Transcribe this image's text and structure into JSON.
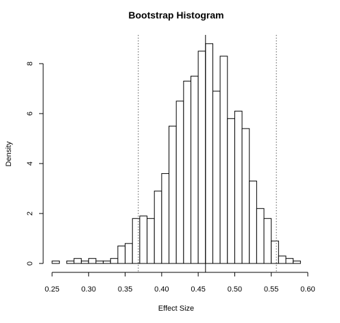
{
  "chart_data": {
    "type": "bar",
    "title": "Bootstrap Histogram",
    "xlabel": "Effect Size",
    "ylabel": "Density",
    "xlim": [
      0.25,
      0.6
    ],
    "ylim": [
      0,
      8
    ],
    "bin_width": 0.01,
    "bins": [
      {
        "x0": 0.25,
        "x1": 0.26,
        "density": 0.1
      },
      {
        "x0": 0.26,
        "x1": 0.27,
        "density": 0.0
      },
      {
        "x0": 0.27,
        "x1": 0.28,
        "density": 0.1
      },
      {
        "x0": 0.28,
        "x1": 0.29,
        "density": 0.2
      },
      {
        "x0": 0.29,
        "x1": 0.3,
        "density": 0.1
      },
      {
        "x0": 0.3,
        "x1": 0.31,
        "density": 0.2
      },
      {
        "x0": 0.31,
        "x1": 0.32,
        "density": 0.1
      },
      {
        "x0": 0.32,
        "x1": 0.33,
        "density": 0.1
      },
      {
        "x0": 0.33,
        "x1": 0.34,
        "density": 0.2
      },
      {
        "x0": 0.34,
        "x1": 0.35,
        "density": 0.7
      },
      {
        "x0": 0.35,
        "x1": 0.36,
        "density": 0.8
      },
      {
        "x0": 0.36,
        "x1": 0.37,
        "density": 1.8
      },
      {
        "x0": 0.37,
        "x1": 0.38,
        "density": 1.9
      },
      {
        "x0": 0.38,
        "x1": 0.39,
        "density": 1.8
      },
      {
        "x0": 0.39,
        "x1": 0.4,
        "density": 2.9
      },
      {
        "x0": 0.4,
        "x1": 0.41,
        "density": 3.6
      },
      {
        "x0": 0.41,
        "x1": 0.42,
        "density": 5.5
      },
      {
        "x0": 0.42,
        "x1": 0.43,
        "density": 6.5
      },
      {
        "x0": 0.43,
        "x1": 0.44,
        "density": 7.3
      },
      {
        "x0": 0.44,
        "x1": 0.45,
        "density": 7.5
      },
      {
        "x0": 0.45,
        "x1": 0.46,
        "density": 8.5
      },
      {
        "x0": 0.46,
        "x1": 0.47,
        "density": 8.8
      },
      {
        "x0": 0.47,
        "x1": 0.48,
        "density": 6.9
      },
      {
        "x0": 0.48,
        "x1": 0.49,
        "density": 8.3
      },
      {
        "x0": 0.49,
        "x1": 0.5,
        "density": 5.8
      },
      {
        "x0": 0.5,
        "x1": 0.51,
        "density": 6.1
      },
      {
        "x0": 0.51,
        "x1": 0.52,
        "density": 5.4
      },
      {
        "x0": 0.52,
        "x1": 0.53,
        "density": 3.3
      },
      {
        "x0": 0.53,
        "x1": 0.54,
        "density": 2.2
      },
      {
        "x0": 0.54,
        "x1": 0.55,
        "density": 1.8
      },
      {
        "x0": 0.55,
        "x1": 0.56,
        "density": 0.9
      },
      {
        "x0": 0.56,
        "x1": 0.57,
        "density": 0.3
      },
      {
        "x0": 0.57,
        "x1": 0.58,
        "density": 0.2
      },
      {
        "x0": 0.58,
        "x1": 0.59,
        "density": 0.1
      }
    ],
    "reference_lines": [
      {
        "x": 0.368,
        "style": "dotted"
      },
      {
        "x": 0.46,
        "style": "solid"
      },
      {
        "x": 0.557,
        "style": "dotted"
      }
    ],
    "x_ticks": [
      0.25,
      0.3,
      0.35,
      0.4,
      0.45,
      0.5,
      0.55,
      0.6
    ],
    "x_tick_labels": [
      "0.25",
      "0.30",
      "0.35",
      "0.40",
      "0.45",
      "0.50",
      "0.55",
      "0.60"
    ],
    "y_ticks": [
      0,
      2,
      4,
      6,
      8
    ],
    "y_tick_labels": [
      "0",
      "2",
      "4",
      "6",
      "8"
    ],
    "grid": false,
    "bar_fill": "#ffffff",
    "bar_stroke": "#000000"
  }
}
